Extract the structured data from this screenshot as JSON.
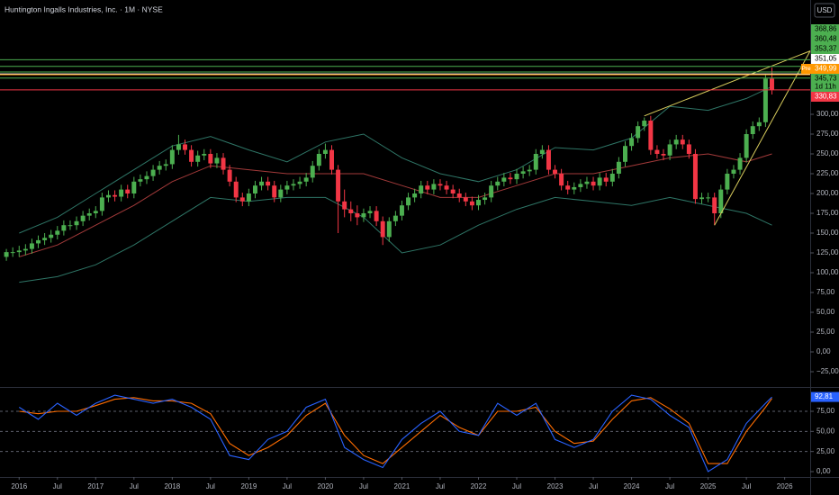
{
  "chart_data": [
    {
      "type": "candlestick",
      "title": "Huntington Ingalls Industries, Inc. · 1M · NYSE",
      "currency": "USD",
      "up_color": "#4caf50",
      "down_color": "#f23645",
      "xlim": [
        "2015-10",
        "2026-05"
      ],
      "ylim": [
        -44.3,
        444.3
      ],
      "yticks": [
        {
          "value": -25,
          "label": "−25,00"
        },
        {
          "value": 0,
          "label": "0,00"
        },
        {
          "value": 25,
          "label": "25,00"
        },
        {
          "value": 50,
          "label": "50,00"
        },
        {
          "value": 75,
          "label": "75,00"
        },
        {
          "value": 100,
          "label": "100,00"
        },
        {
          "value": 125,
          "label": "125,00"
        },
        {
          "value": 150,
          "label": "150,00"
        },
        {
          "value": 175,
          "label": "175,00"
        },
        {
          "value": 200,
          "label": "200,00"
        },
        {
          "value": 225,
          "label": "225,00"
        },
        {
          "value": 250,
          "label": "250,00"
        },
        {
          "value": 275,
          "label": "275,00"
        },
        {
          "value": 300,
          "label": "300,00"
        }
      ],
      "x": [
        "2015-11",
        "2015-12",
        "2016-01",
        "2016-02",
        "2016-03",
        "2016-04",
        "2016-05",
        "2016-06",
        "2016-07",
        "2016-08",
        "2016-09",
        "2016-10",
        "2016-11",
        "2016-12",
        "2017-01",
        "2017-02",
        "2017-03",
        "2017-04",
        "2017-05",
        "2017-06",
        "2017-07",
        "2017-08",
        "2017-09",
        "2017-10",
        "2017-11",
        "2017-12",
        "2018-01",
        "2018-02",
        "2018-03",
        "2018-04",
        "2018-05",
        "2018-06",
        "2018-07",
        "2018-08",
        "2018-09",
        "2018-10",
        "2018-11",
        "2018-12",
        "2019-01",
        "2019-02",
        "2019-03",
        "2019-04",
        "2019-05",
        "2019-06",
        "2019-07",
        "2019-08",
        "2019-09",
        "2019-10",
        "2019-11",
        "2019-12",
        "2020-01",
        "2020-02",
        "2020-03",
        "2020-04",
        "2020-05",
        "2020-06",
        "2020-07",
        "2020-08",
        "2020-09",
        "2020-10",
        "2020-11",
        "2020-12",
        "2021-01",
        "2021-02",
        "2021-03",
        "2021-04",
        "2021-05",
        "2021-06",
        "2021-07",
        "2021-08",
        "2021-09",
        "2021-10",
        "2021-11",
        "2021-12",
        "2022-01",
        "2022-02",
        "2022-03",
        "2022-04",
        "2022-05",
        "2022-06",
        "2022-07",
        "2022-08",
        "2022-09",
        "2022-10",
        "2022-11",
        "2022-12",
        "2023-01",
        "2023-02",
        "2023-03",
        "2023-04",
        "2023-05",
        "2023-06",
        "2023-07",
        "2023-08",
        "2023-09",
        "2023-10",
        "2023-11",
        "2023-12",
        "2024-01",
        "2024-02",
        "2024-03",
        "2024-04",
        "2024-05",
        "2024-06",
        "2024-07",
        "2024-08",
        "2024-09",
        "2024-10",
        "2024-11",
        "2024-12",
        "2025-01",
        "2025-02",
        "2025-03",
        "2025-04",
        "2025-05",
        "2025-06",
        "2025-07",
        "2025-08",
        "2025-09",
        "2025-10",
        "2025-11"
      ],
      "open": [
        120,
        126,
        126,
        128,
        130,
        137,
        141,
        144,
        148,
        153,
        160,
        160,
        165,
        172,
        175,
        178,
        195,
        198,
        196,
        205,
        200,
        215,
        218,
        222,
        230,
        235,
        237,
        255,
        262,
        255,
        240,
        248,
        250,
        238,
        245,
        230,
        215,
        195,
        190,
        200,
        210,
        215,
        210,
        195,
        205,
        210,
        212,
        215,
        220,
        235,
        250,
        255,
        230,
        190,
        180,
        175,
        170,
        175,
        178,
        165,
        145,
        165,
        172,
        185,
        195,
        200,
        210,
        205,
        212,
        210,
        205,
        200,
        195,
        190,
        185,
        192,
        195,
        210,
        215,
        220,
        218,
        225,
        228,
        230,
        250,
        255,
        230,
        225,
        210,
        205,
        208,
        212,
        215,
        210,
        220,
        215,
        225,
        240,
        260,
        270,
        285,
        292,
        255,
        250,
        248,
        262,
        268,
        262,
        250,
        193,
        195,
        195,
        175,
        205,
        225,
        230,
        245,
        275,
        285,
        290,
        345
      ],
      "high": [
        130,
        132,
        134,
        136,
        143,
        147,
        150,
        154,
        159,
        166,
        166,
        171,
        178,
        181,
        184,
        201,
        204,
        204,
        211,
        211,
        221,
        224,
        228,
        236,
        241,
        243,
        261,
        274,
        268,
        261,
        254,
        256,
        256,
        251,
        251,
        236,
        221,
        201,
        206,
        216,
        221,
        221,
        216,
        211,
        216,
        218,
        221,
        226,
        241,
        256,
        263,
        261,
        236,
        205,
        190,
        185,
        181,
        184,
        184,
        171,
        170,
        178,
        191,
        201,
        206,
        216,
        216,
        218,
        218,
        216,
        211,
        206,
        201,
        196,
        198,
        201,
        216,
        221,
        226,
        226,
        231,
        234,
        236,
        256,
        261,
        261,
        236,
        231,
        216,
        214,
        218,
        221,
        221,
        226,
        226,
        231,
        246,
        266,
        276,
        291,
        296,
        298,
        261,
        256,
        268,
        274,
        274,
        268,
        256,
        201,
        201,
        201,
        211,
        231,
        236,
        251,
        281,
        291,
        296,
        350,
        359
      ],
      "low": [
        115,
        120,
        120,
        122,
        124,
        131,
        135,
        138,
        142,
        147,
        154,
        154,
        159,
        166,
        169,
        172,
        189,
        190,
        190,
        194,
        194,
        209,
        212,
        216,
        224,
        229,
        231,
        249,
        249,
        234,
        234,
        242,
        232,
        232,
        224,
        209,
        189,
        184,
        184,
        194,
        204,
        204,
        189,
        189,
        199,
        204,
        206,
        209,
        214,
        229,
        244,
        224,
        150,
        170,
        165,
        160,
        164,
        169,
        159,
        135,
        139,
        159,
        166,
        179,
        189,
        194,
        199,
        199,
        204,
        199,
        194,
        189,
        184,
        179,
        179,
        186,
        189,
        204,
        209,
        212,
        212,
        219,
        222,
        224,
        244,
        224,
        219,
        204,
        199,
        199,
        202,
        206,
        204,
        204,
        209,
        209,
        219,
        234,
        254,
        264,
        279,
        249,
        244,
        242,
        242,
        256,
        256,
        244,
        187,
        187,
        189,
        160,
        169,
        199,
        219,
        224,
        239,
        269,
        279,
        284,
        325
      ],
      "close": [
        126,
        126,
        128,
        130,
        137,
        141,
        144,
        148,
        153,
        160,
        160,
        165,
        172,
        175,
        178,
        195,
        198,
        196,
        205,
        200,
        215,
        218,
        222,
        230,
        235,
        237,
        255,
        262,
        255,
        240,
        248,
        250,
        238,
        245,
        230,
        215,
        195,
        190,
        200,
        210,
        215,
        210,
        195,
        205,
        210,
        212,
        215,
        220,
        235,
        250,
        255,
        230,
        190,
        180,
        175,
        170,
        175,
        178,
        165,
        145,
        165,
        172,
        185,
        195,
        200,
        210,
        205,
        212,
        210,
        205,
        200,
        195,
        190,
        185,
        192,
        195,
        210,
        215,
        220,
        218,
        225,
        228,
        230,
        250,
        255,
        230,
        225,
        210,
        205,
        208,
        212,
        215,
        210,
        220,
        215,
        225,
        240,
        260,
        270,
        285,
        292,
        255,
        250,
        248,
        262,
        268,
        262,
        250,
        193,
        195,
        195,
        175,
        205,
        225,
        230,
        245,
        275,
        285,
        290,
        345,
        330.83
      ],
      "bands": {
        "x": [
          "2016-01",
          "2016-07",
          "2017-01",
          "2017-07",
          "2018-01",
          "2018-07",
          "2019-01",
          "2019-07",
          "2020-01",
          "2020-07",
          "2021-01",
          "2021-07",
          "2022-01",
          "2022-07",
          "2023-01",
          "2023-07",
          "2024-01",
          "2024-07",
          "2025-01",
          "2025-07",
          "2025-11"
        ],
        "series": [
          {
            "color": "#2e7566",
            "values": [
              150,
              170,
              200,
              230,
              260,
              272,
              255,
              240,
              265,
              275,
              245,
              225,
              215,
              230,
              258,
              255,
              270,
              310,
              305,
              320,
              335
            ]
          },
          {
            "color": "#a33a3a",
            "values": [
              120,
              135,
              160,
              185,
              215,
              235,
              230,
              225,
              225,
              225,
              210,
              195,
              195,
              210,
              225,
              225,
              235,
              245,
              250,
              240,
              250
            ]
          },
          {
            "color": "#2e7566",
            "values": [
              88,
              95,
              110,
              135,
              165,
              195,
              190,
              195,
              195,
              170,
              125,
              135,
              160,
              180,
              195,
              190,
              185,
              195,
              185,
              175,
              160
            ]
          }
        ]
      },
      "trendlines": [
        {
          "color": "#d8cc5c",
          "x": [
            "2024-03",
            "2026-05"
          ],
          "values": [
            298,
            380
          ]
        },
        {
          "color": "#d8cc5c",
          "x": [
            "2025-02",
            "2026-05"
          ],
          "values": [
            160,
            380
          ]
        }
      ],
      "levels": [
        {
          "value": 368.86,
          "label": "368,86",
          "color": "#4caf50",
          "text_color": "#000000"
        },
        {
          "value": 360.48,
          "label": "360,48",
          "color": "#4caf50",
          "text_color": "#000000"
        },
        {
          "value": 353.37,
          "label": "353,37",
          "color": "#4caf50",
          "text_color": "#000000"
        },
        {
          "value": 351.05,
          "label": "351,05",
          "color": "#ffffff",
          "text_color": "#000000"
        },
        {
          "value": 349.99,
          "label": "349,99",
          "color": "#ff9800",
          "text_color": "#ffffff",
          "tag": "Pre"
        },
        {
          "value": 345.73,
          "label": "345,73",
          "color": "#4caf50",
          "text_color": "#000000",
          "countdown": "1d 11h"
        },
        {
          "value": 330.83,
          "label": "330,83",
          "color": "#f23645",
          "text_color": "#ffffff"
        }
      ]
    },
    {
      "type": "line",
      "xlim": [
        "2015-10",
        "2026-05"
      ],
      "ylim": [
        -6.7,
        105.2
      ],
      "yticks": [
        {
          "value": 0,
          "label": "0,00"
        },
        {
          "value": 25,
          "label": "25,00"
        },
        {
          "value": 50,
          "label": "50,00"
        },
        {
          "value": 75,
          "label": "75,00"
        }
      ],
      "dashed_grid": [
        25,
        50,
        75
      ],
      "xticks": [
        {
          "value": "2016-01",
          "label": "2016"
        },
        {
          "value": "2016-07",
          "label": "Jul"
        },
        {
          "value": "2017-01",
          "label": "2017"
        },
        {
          "value": "2017-07",
          "label": "Jul"
        },
        {
          "value": "2018-01",
          "label": "2018"
        },
        {
          "value": "2018-07",
          "label": "Jul"
        },
        {
          "value": "2019-01",
          "label": "2019"
        },
        {
          "value": "2019-07",
          "label": "Jul"
        },
        {
          "value": "2020-01",
          "label": "2020"
        },
        {
          "value": "2020-07",
          "label": "Jul"
        },
        {
          "value": "2021-01",
          "label": "2021"
        },
        {
          "value": "2021-07",
          "label": "Jul"
        },
        {
          "value": "2022-01",
          "label": "2022"
        },
        {
          "value": "2022-07",
          "label": "Jul"
        },
        {
          "value": "2023-01",
          "label": "2023"
        },
        {
          "value": "2023-07",
          "label": "Jul"
        },
        {
          "value": "2024-01",
          "label": "2024"
        },
        {
          "value": "2024-07",
          "label": "Jul"
        },
        {
          "value": "2025-01",
          "label": "2025"
        },
        {
          "value": "2025-07",
          "label": "Jul"
        },
        {
          "value": "2026-01",
          "label": "2026"
        }
      ],
      "x": [
        "2016-01",
        "2016-04",
        "2016-07",
        "2016-10",
        "2017-01",
        "2017-04",
        "2017-07",
        "2017-10",
        "2018-01",
        "2018-04",
        "2018-07",
        "2018-10",
        "2019-01",
        "2019-04",
        "2019-07",
        "2019-10",
        "2020-01",
        "2020-04",
        "2020-07",
        "2020-10",
        "2021-01",
        "2021-04",
        "2021-07",
        "2021-10",
        "2022-01",
        "2022-04",
        "2022-07",
        "2022-10",
        "2023-01",
        "2023-04",
        "2023-07",
        "2023-10",
        "2024-01",
        "2024-04",
        "2024-07",
        "2024-10",
        "2025-01",
        "2025-04",
        "2025-07",
        "2025-10",
        "2025-11"
      ],
      "series": [
        {
          "color": "#ff6d00",
          "values": [
            75,
            72,
            75,
            75,
            82,
            90,
            92,
            88,
            88,
            85,
            72,
            35,
            20,
            30,
            45,
            70,
            85,
            45,
            20,
            10,
            30,
            50,
            70,
            55,
            45,
            75,
            75,
            80,
            50,
            35,
            38,
            65,
            88,
            92,
            78,
            60,
            10,
            10,
            50,
            80,
            91
          ]
        },
        {
          "color": "#2962ff",
          "values": [
            80,
            65,
            85,
            70,
            85,
            95,
            90,
            85,
            90,
            80,
            65,
            20,
            15,
            40,
            50,
            80,
            90,
            30,
            15,
            5,
            40,
            60,
            75,
            50,
            45,
            85,
            70,
            85,
            40,
            30,
            40,
            75,
            95,
            90,
            70,
            55,
            0,
            15,
            60,
            85,
            92.81
          ],
          "last_label": {
            "value": 92.81,
            "label": "92,81"
          }
        }
      ]
    }
  ]
}
